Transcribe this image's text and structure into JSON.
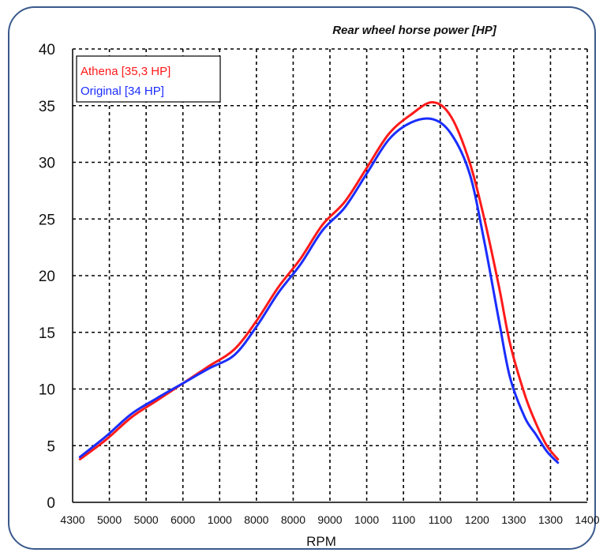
{
  "chart_data": {
    "type": "line",
    "title": "Rear wheel horse power [HP]",
    "xlabel": "RPM",
    "ylabel": "",
    "x_tick_labels": [
      "4300",
      "5000",
      "5000",
      "6000",
      "1000",
      "8000",
      "8000",
      "9000",
      "1000",
      "1100",
      "1100",
      "1200",
      "1300",
      "1300",
      "1400"
    ],
    "y_ticks": [
      0,
      5,
      10,
      15,
      20,
      25,
      30,
      35,
      40
    ],
    "ylim": [
      0,
      40
    ],
    "x_range": [
      0,
      14
    ],
    "grid": true,
    "legend_position": "top-left",
    "series": [
      {
        "name": "Athena [35,3 HP]",
        "color": "#ff1a1a",
        "x": [
          0.2,
          0.9,
          1.6,
          2.3,
          3.0,
          3.7,
          4.4,
          5.0,
          5.6,
          6.2,
          6.8,
          7.4,
          8.0,
          8.6,
          9.2,
          9.8,
          10.3,
          10.8,
          11.2,
          11.6,
          11.9,
          12.3,
          12.6,
          12.9,
          13.2
        ],
        "y": [
          3.8,
          5.5,
          7.5,
          9.0,
          10.5,
          12.0,
          13.5,
          16.0,
          19.0,
          21.5,
          24.5,
          26.5,
          29.5,
          32.5,
          34.2,
          35.3,
          34.0,
          30.0,
          25.0,
          19.0,
          14.0,
          9.5,
          7.0,
          5.0,
          3.8
        ]
      },
      {
        "name": "Original [34 HP]",
        "color": "#1a2dff",
        "x": [
          0.2,
          0.9,
          1.6,
          2.3,
          3.0,
          3.7,
          4.4,
          5.0,
          5.6,
          6.2,
          6.8,
          7.4,
          8.0,
          8.6,
          9.2,
          9.8,
          10.3,
          10.8,
          11.2,
          11.6,
          11.9,
          12.3,
          12.6,
          12.9,
          13.2
        ],
        "y": [
          4.0,
          5.8,
          7.8,
          9.2,
          10.5,
          11.8,
          13.0,
          15.5,
          18.5,
          21.0,
          24.0,
          26.0,
          29.0,
          32.0,
          33.5,
          33.8,
          32.5,
          29.0,
          23.0,
          16.0,
          11.0,
          7.5,
          6.0,
          4.5,
          3.5
        ]
      }
    ]
  }
}
